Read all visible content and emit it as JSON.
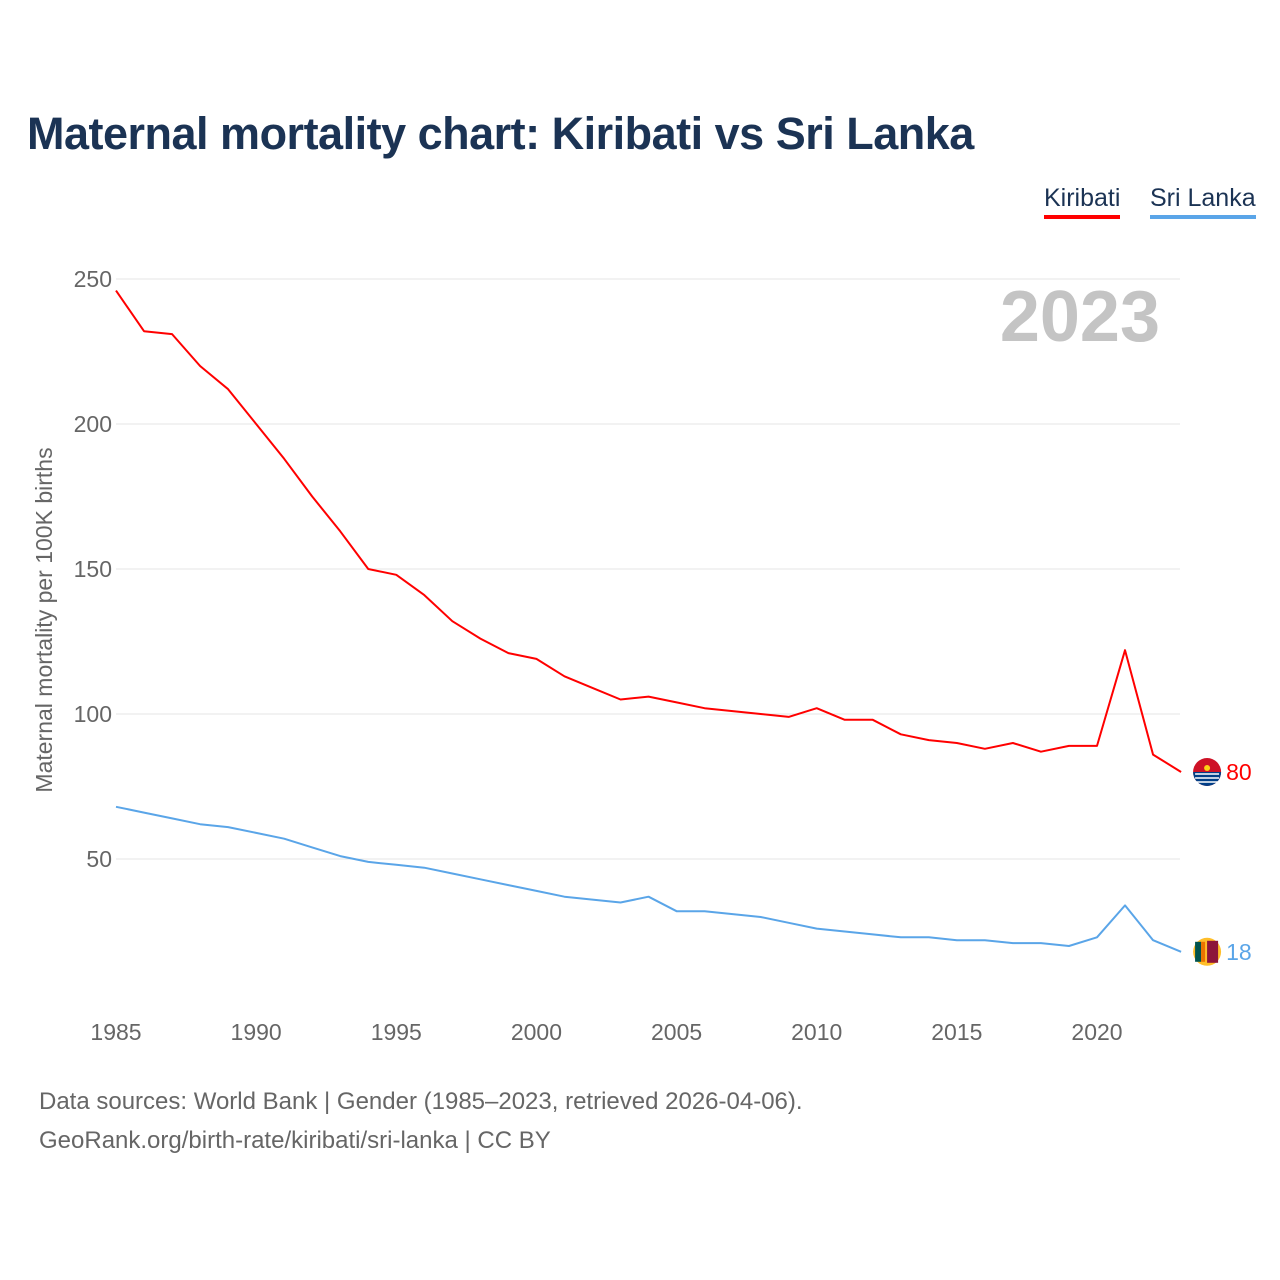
{
  "chart_data": {
    "type": "line",
    "title": "Maternal mortality chart: Kiribati vs Sri Lanka",
    "ylabel": "Maternal mortality per 100K births",
    "xlabel": "",
    "ylim": [
      0,
      250
    ],
    "xlim": [
      1985,
      2023
    ],
    "yticks": [
      50,
      100,
      150,
      200,
      250
    ],
    "xticks": [
      1985,
      1990,
      1995,
      2000,
      2005,
      2010,
      2015,
      2020
    ],
    "grid": true,
    "legend_position": "top-right",
    "year_watermark": "2023",
    "x": [
      1985,
      1986,
      1987,
      1988,
      1989,
      1990,
      1991,
      1992,
      1993,
      1994,
      1995,
      1996,
      1997,
      1998,
      1999,
      2000,
      2001,
      2002,
      2003,
      2004,
      2005,
      2006,
      2007,
      2008,
      2009,
      2010,
      2011,
      2012,
      2013,
      2014,
      2015,
      2016,
      2017,
      2018,
      2019,
      2020,
      2021,
      2022,
      2023
    ],
    "series": [
      {
        "name": "Kiribati",
        "color": "#ff0000",
        "end_label": "80",
        "values": [
          246,
          232,
          231,
          220,
          212,
          200,
          188,
          175,
          163,
          150,
          148,
          141,
          132,
          126,
          121,
          119,
          113,
          109,
          105,
          106,
          104,
          102,
          101,
          100,
          99,
          102,
          98,
          98,
          93,
          91,
          90,
          88,
          90,
          87,
          89,
          89,
          122,
          86,
          80
        ]
      },
      {
        "name": "Sri Lanka",
        "color": "#5aa5e8",
        "end_label": "18",
        "values": [
          68,
          66,
          64,
          62,
          61,
          59,
          57,
          54,
          51,
          49,
          48,
          47,
          45,
          43,
          41,
          39,
          37,
          36,
          35,
          37,
          32,
          32,
          31,
          30,
          28,
          26,
          25,
          24,
          23,
          23,
          22,
          22,
          21,
          21,
          20,
          23,
          34,
          22,
          18
        ]
      }
    ]
  },
  "footer": {
    "line1": "Data sources: World Bank | Gender (1985–2023, retrieved 2026-04-06).",
    "line2": "GeoRank.org/birth-rate/kiribati/sri-lanka | CC BY"
  }
}
